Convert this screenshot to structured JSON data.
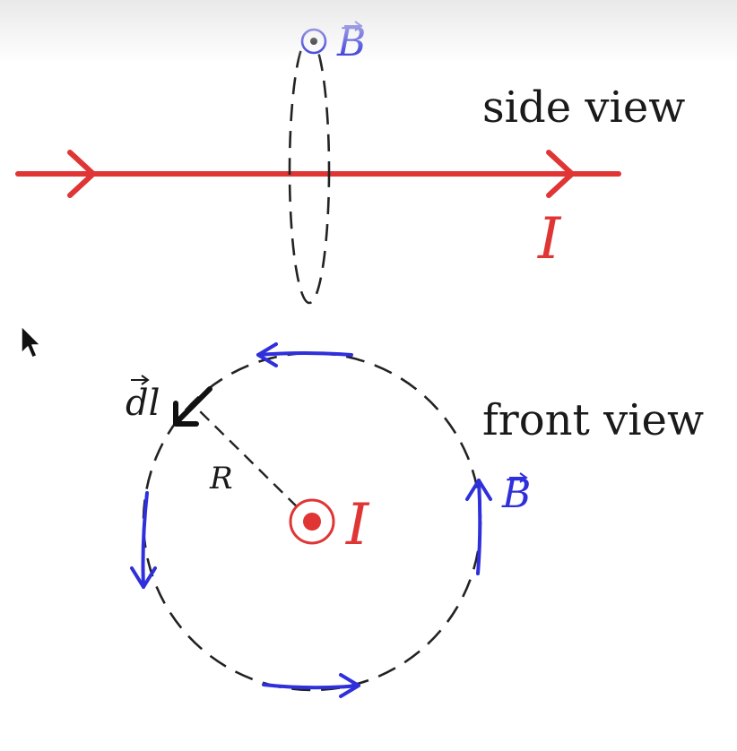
{
  "labels": {
    "side_view": "side view",
    "front_view": "front view",
    "current": "I",
    "field": "B",
    "line_element": "dl",
    "radius": "R"
  },
  "colors": {
    "current": "#e03535",
    "field": "#2f2fdc",
    "loop": "#222222",
    "text": "#1a1a1a"
  },
  "icons": {
    "out_of_page": "dot-in-circle-icon",
    "cursor": "mouse-pointer-icon"
  }
}
